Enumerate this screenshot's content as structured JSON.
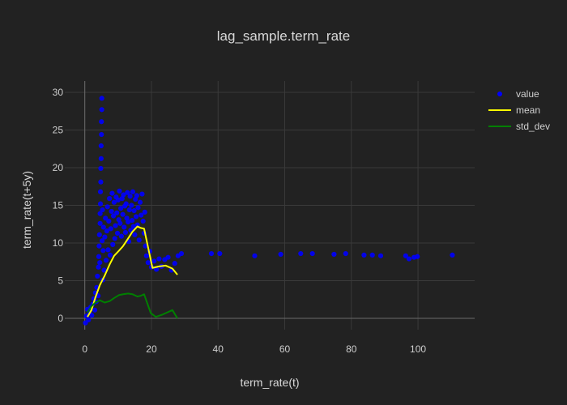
{
  "chart_data": {
    "type": "scatter",
    "title": "lag_sample.term_rate",
    "xlabel": "term_rate(t)",
    "ylabel": "term_rate(t+5y)",
    "xlim": [
      -6,
      117
    ],
    "ylim": [
      -1.5,
      31.5
    ],
    "xticks": [
      0,
      20,
      40,
      60,
      80,
      100
    ],
    "yticks": [
      0,
      5,
      10,
      15,
      20,
      25,
      30
    ],
    "grid": true,
    "legend_position": "top-right",
    "background": "#222222",
    "grid_color": "#3a3a3a",
    "series": [
      {
        "name": "value",
        "mode": "markers",
        "color": "#0000ff",
        "points": [
          [
            0.2,
            -0.6
          ],
          [
            0.5,
            0.3
          ],
          [
            0.8,
            1.2
          ],
          [
            1.1,
            -0.2
          ],
          [
            1.4,
            0.8
          ],
          [
            1.8,
            1.5
          ],
          [
            2.1,
            0.4
          ],
          [
            2.4,
            1.9
          ],
          [
            2.7,
            2.6
          ],
          [
            3.0,
            1.1
          ],
          [
            3.2,
            3.4
          ],
          [
            3.4,
            2.2
          ],
          [
            3.6,
            4.1
          ],
          [
            3.8,
            5.6
          ],
          [
            4.0,
            3.0
          ],
          [
            4.1,
            6.8
          ],
          [
            4.2,
            8.2
          ],
          [
            4.3,
            9.6
          ],
          [
            4.4,
            11.1
          ],
          [
            4.5,
            7.4
          ],
          [
            4.6,
            12.6
          ],
          [
            4.6,
            13.9
          ],
          [
            4.7,
            15.2
          ],
          [
            4.7,
            16.8
          ],
          [
            4.8,
            18.1
          ],
          [
            4.8,
            19.9
          ],
          [
            4.9,
            21.2
          ],
          [
            4.9,
            22.9
          ],
          [
            5.0,
            24.4
          ],
          [
            5.0,
            26.1
          ],
          [
            5.1,
            27.7
          ],
          [
            5.1,
            29.2
          ],
          [
            5.2,
            10.3
          ],
          [
            5.3,
            14.4
          ],
          [
            5.4,
            5.1
          ],
          [
            5.5,
            9.0
          ],
          [
            5.6,
            12.1
          ],
          [
            5.8,
            6.4
          ],
          [
            6.0,
            10.8
          ],
          [
            6.2,
            13.3
          ],
          [
            6.4,
            7.7
          ],
          [
            6.6,
            11.6
          ],
          [
            6.8,
            14.8
          ],
          [
            7.0,
            9.1
          ],
          [
            7.2,
            12.9
          ],
          [
            7.4,
            15.9
          ],
          [
            7.6,
            8.4
          ],
          [
            7.8,
            11.9
          ],
          [
            8.0,
            14.2
          ],
          [
            8.2,
            16.6
          ],
          [
            8.4,
            9.8
          ],
          [
            8.6,
            13.6
          ],
          [
            8.8,
            15.4
          ],
          [
            9.0,
            10.6
          ],
          [
            9.2,
            12.3
          ],
          [
            9.4,
            16.1
          ],
          [
            9.6,
            14.0
          ],
          [
            9.8,
            11.3
          ],
          [
            10.0,
            15.7
          ],
          [
            10.2,
            13.1
          ],
          [
            10.4,
            16.9
          ],
          [
            10.6,
            12.6
          ],
          [
            10.8,
            14.6
          ],
          [
            11.0,
            10.9
          ],
          [
            11.2,
            15.9
          ],
          [
            11.4,
            13.8
          ],
          [
            11.6,
            16.4
          ],
          [
            11.8,
            12.1
          ],
          [
            12.0,
            14.9
          ],
          [
            12.2,
            11.4
          ],
          [
            12.4,
            15.2
          ],
          [
            12.6,
            13.3
          ],
          [
            12.8,
            16.7
          ],
          [
            13.0,
            12.8
          ],
          [
            13.2,
            10.2
          ],
          [
            13.4,
            14.4
          ],
          [
            13.6,
            16.2
          ],
          [
            13.8,
            11.7
          ],
          [
            14.0,
            15.0
          ],
          [
            14.2,
            13.0
          ],
          [
            14.4,
            16.8
          ],
          [
            14.6,
            12.2
          ],
          [
            14.8,
            14.3
          ],
          [
            15.0,
            11.1
          ],
          [
            15.2,
            15.8
          ],
          [
            15.4,
            13.5
          ],
          [
            15.6,
            16.3
          ],
          [
            15.8,
            12.4
          ],
          [
            16.0,
            14.7
          ],
          [
            16.3,
            10.4
          ],
          [
            16.6,
            15.4
          ],
          [
            16.9,
            13.7
          ],
          [
            17.2,
            16.5
          ],
          [
            17.5,
            12.9
          ],
          [
            17.8,
            11.3
          ],
          [
            18.0,
            14.1
          ],
          [
            18.2,
            9.6
          ],
          [
            18.5,
            8.3
          ],
          [
            19.0,
            7.4
          ],
          [
            19.5,
            8.9
          ],
          [
            20.0,
            6.8
          ],
          [
            20.8,
            7.6
          ],
          [
            21.5,
            6.5
          ],
          [
            22.3,
            7.9
          ],
          [
            23.0,
            6.9
          ],
          [
            24.0,
            7.8
          ],
          [
            25.0,
            8.1
          ],
          [
            26.0,
            6.4
          ],
          [
            27.0,
            7.3
          ],
          [
            28.0,
            8.3
          ],
          [
            29.0,
            8.6
          ],
          [
            38.0,
            8.6
          ],
          [
            40.5,
            8.6
          ],
          [
            51.0,
            8.3
          ],
          [
            58.8,
            8.5
          ],
          [
            64.8,
            8.6
          ],
          [
            68.3,
            8.6
          ],
          [
            74.8,
            8.5
          ],
          [
            78.3,
            8.6
          ],
          [
            83.8,
            8.4
          ],
          [
            86.3,
            8.4
          ],
          [
            88.8,
            8.3
          ],
          [
            96.3,
            8.3
          ],
          [
            97.3,
            7.9
          ],
          [
            98.8,
            8.1
          ],
          [
            99.8,
            8.2
          ],
          [
            110.3,
            8.4
          ]
        ]
      },
      {
        "name": "mean",
        "mode": "line",
        "color": "#ffff00",
        "x": [
          0.8,
          2.0,
          3.2,
          4.5,
          6.0,
          7.5,
          8.8,
          10.3,
          11.5,
          13.0,
          14.3,
          15.8,
          16.8,
          17.8,
          20.3,
          22.3,
          24.3,
          26.3,
          27.8
        ],
        "y": [
          0.2,
          1.1,
          2.8,
          4.4,
          5.7,
          7.2,
          8.3,
          9.0,
          9.6,
          10.6,
          11.5,
          12.2,
          12.0,
          11.9,
          6.7,
          6.9,
          7.0,
          6.6,
          5.8
        ]
      },
      {
        "name": "std_dev",
        "mode": "line",
        "color": "#008000",
        "x": [
          0.8,
          2.0,
          3.2,
          4.5,
          6.0,
          7.5,
          8.8,
          10.3,
          11.5,
          13.0,
          14.3,
          15.8,
          16.8,
          17.8,
          19.8,
          21.3,
          23.3,
          25.3,
          26.3,
          27.8
        ],
        "y": [
          0.8,
          1.6,
          2.1,
          2.4,
          2.1,
          2.3,
          2.7,
          3.1,
          3.2,
          3.3,
          3.2,
          2.9,
          3.0,
          3.2,
          0.7,
          0.2,
          0.5,
          0.9,
          1.1,
          0.0
        ]
      }
    ]
  }
}
